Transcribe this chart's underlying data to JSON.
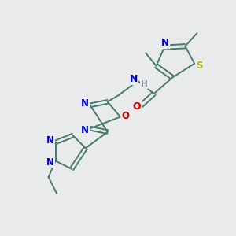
{
  "background_color": "#e8eaec",
  "fig_width": 3.0,
  "fig_height": 3.0,
  "dpi": 100,
  "atom_colors": {
    "C": "#4a7a6a",
    "N": "#0000cc",
    "O": "#cc0000",
    "S": "#b8b800",
    "H": "#888888"
  },
  "bond_color": "#4a7a6a",
  "bond_width": 1.4
}
